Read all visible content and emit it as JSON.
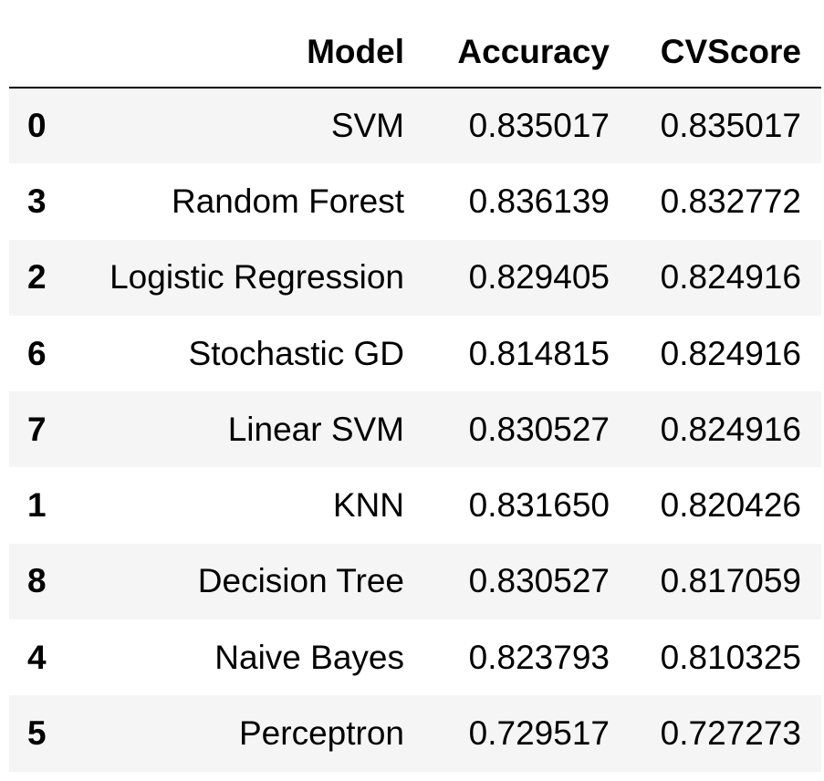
{
  "table": {
    "headers": {
      "index": "",
      "model": "Model",
      "accuracy": "Accuracy",
      "cvscore": "CVScore"
    },
    "rows": [
      {
        "index": "0",
        "model": "SVM",
        "accuracy": "0.835017",
        "cvscore": "0.835017"
      },
      {
        "index": "3",
        "model": "Random Forest",
        "accuracy": "0.836139",
        "cvscore": "0.832772"
      },
      {
        "index": "2",
        "model": "Logistic Regression",
        "accuracy": "0.829405",
        "cvscore": "0.824916"
      },
      {
        "index": "6",
        "model": "Stochastic GD",
        "accuracy": "0.814815",
        "cvscore": "0.824916"
      },
      {
        "index": "7",
        "model": "Linear SVM",
        "accuracy": "0.830527",
        "cvscore": "0.824916"
      },
      {
        "index": "1",
        "model": "KNN",
        "accuracy": "0.831650",
        "cvscore": "0.820426"
      },
      {
        "index": "8",
        "model": "Decision Tree",
        "accuracy": "0.830527",
        "cvscore": "0.817059"
      },
      {
        "index": "4",
        "model": "Naive Bayes",
        "accuracy": "0.823793",
        "cvscore": "0.810325"
      },
      {
        "index": "5",
        "model": "Perceptron",
        "accuracy": "0.729517",
        "cvscore": "0.727273"
      }
    ]
  }
}
